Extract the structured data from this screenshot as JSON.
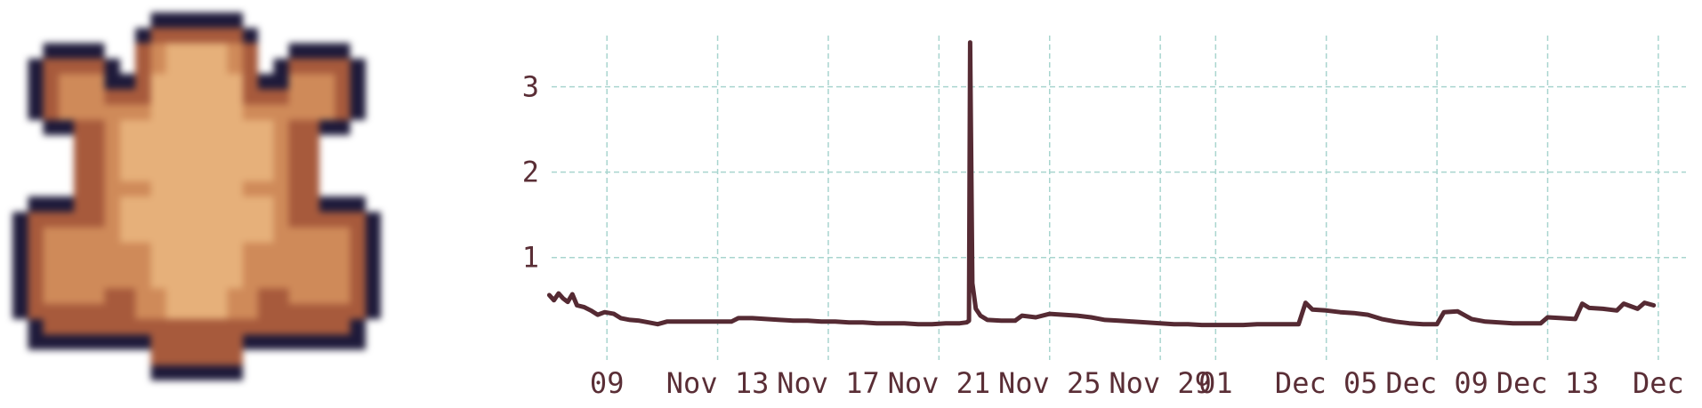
{
  "token_image": {
    "icon": "turtle-sprite-icon",
    "colors": {
      "outline": "#1e1a3a",
      "shell_dark": "#a75a3c",
      "shell_mid": "#cf8a59",
      "shell_light": "#e6b07a"
    }
  },
  "chart_data": {
    "type": "line",
    "title": "",
    "xlabel": "",
    "ylabel": "",
    "x_axis": {
      "type": "date",
      "range": [
        "2023-11-07T00:00",
        "2023-12-18T00:00"
      ],
      "ticks": [
        "2023-11-09",
        "2023-11-13",
        "2023-11-17",
        "2023-11-21",
        "2023-11-25",
        "2023-11-29",
        "2023-12-01",
        "2023-12-05",
        "2023-12-09",
        "2023-12-13",
        "2023-12-17"
      ],
      "tick_labels": [
        "09",
        "Nov 13",
        "Nov 17",
        "Nov 21",
        "Nov 25",
        "Nov 29",
        "01",
        "Dec 05",
        "Dec 09",
        "Dec 13",
        "Dec"
      ]
    },
    "y_axis": {
      "range": [
        -0.2,
        3.6
      ],
      "ticks": [
        1,
        2,
        3
      ],
      "tick_labels": [
        "1",
        "2",
        "3"
      ]
    },
    "grid": true,
    "legend": false,
    "colors": {
      "line": "#552a33",
      "grid": "#a9d5cf",
      "text": "#5a2e36"
    },
    "series": [
      {
        "points": [
          [
            "2023-11-06T22:00",
            0.56
          ],
          [
            "2023-11-07T02:00",
            0.5
          ],
          [
            "2023-11-07T06:00",
            0.58
          ],
          [
            "2023-11-07T10:00",
            0.52
          ],
          [
            "2023-11-07T14:00",
            0.48
          ],
          [
            "2023-11-07T18:00",
            0.57
          ],
          [
            "2023-11-07T22:00",
            0.44
          ],
          [
            "2023-11-08T04:00",
            0.42
          ],
          [
            "2023-11-08T10:00",
            0.38
          ],
          [
            "2023-11-08T16:00",
            0.33
          ],
          [
            "2023-11-08T22:00",
            0.36
          ],
          [
            "2023-11-09T06:00",
            0.34
          ],
          [
            "2023-11-09T12:00",
            0.29
          ],
          [
            "2023-11-09T20:00",
            0.27
          ],
          [
            "2023-11-10T04:00",
            0.26
          ],
          [
            "2023-11-10T12:00",
            0.24
          ],
          [
            "2023-11-10T20:00",
            0.22
          ],
          [
            "2023-11-11T04:00",
            0.25
          ],
          [
            "2023-11-11T12:00",
            0.25
          ],
          [
            "2023-11-12T00:00",
            0.25
          ],
          [
            "2023-11-12T12:00",
            0.25
          ],
          [
            "2023-11-13T00:00",
            0.25
          ],
          [
            "2023-11-13T12:00",
            0.25
          ],
          [
            "2023-11-13T18:00",
            0.29
          ],
          [
            "2023-11-14T06:00",
            0.29
          ],
          [
            "2023-11-14T18:00",
            0.28
          ],
          [
            "2023-11-15T06:00",
            0.27
          ],
          [
            "2023-11-15T18:00",
            0.26
          ],
          [
            "2023-11-16T06:00",
            0.26
          ],
          [
            "2023-11-16T18:00",
            0.25
          ],
          [
            "2023-11-17T06:00",
            0.25
          ],
          [
            "2023-11-17T18:00",
            0.24
          ],
          [
            "2023-11-18T06:00",
            0.24
          ],
          [
            "2023-11-18T18:00",
            0.23
          ],
          [
            "2023-11-19T06:00",
            0.23
          ],
          [
            "2023-11-19T18:00",
            0.23
          ],
          [
            "2023-11-20T06:00",
            0.22
          ],
          [
            "2023-11-20T18:00",
            0.22
          ],
          [
            "2023-11-21T06:00",
            0.23
          ],
          [
            "2023-11-21T18:00",
            0.23
          ],
          [
            "2023-11-22T00:00",
            0.24
          ],
          [
            "2023-11-22T02:00",
            0.26
          ],
          [
            "2023-11-22T03:00",
            3.52
          ],
          [
            "2023-11-22T05:00",
            0.7
          ],
          [
            "2023-11-22T08:00",
            0.4
          ],
          [
            "2023-11-22T12:00",
            0.32
          ],
          [
            "2023-11-22T18:00",
            0.27
          ],
          [
            "2023-11-23T06:00",
            0.26
          ],
          [
            "2023-11-23T18:00",
            0.26
          ],
          [
            "2023-11-24T00:00",
            0.32
          ],
          [
            "2023-11-24T12:00",
            0.3
          ],
          [
            "2023-11-25T00:00",
            0.34
          ],
          [
            "2023-11-25T12:00",
            0.33
          ],
          [
            "2023-11-26T00:00",
            0.32
          ],
          [
            "2023-11-26T12:00",
            0.3
          ],
          [
            "2023-11-27T00:00",
            0.27
          ],
          [
            "2023-11-27T12:00",
            0.26
          ],
          [
            "2023-11-28T00:00",
            0.25
          ],
          [
            "2023-11-28T12:00",
            0.24
          ],
          [
            "2023-11-29T00:00",
            0.23
          ],
          [
            "2023-11-29T12:00",
            0.22
          ],
          [
            "2023-11-30T00:00",
            0.22
          ],
          [
            "2023-11-30T12:00",
            0.21
          ],
          [
            "2023-12-01T00:00",
            0.21
          ],
          [
            "2023-12-01T12:00",
            0.21
          ],
          [
            "2023-12-02T00:00",
            0.21
          ],
          [
            "2023-12-02T12:00",
            0.22
          ],
          [
            "2023-12-03T00:00",
            0.22
          ],
          [
            "2023-12-03T12:00",
            0.22
          ],
          [
            "2023-12-04T00:00",
            0.22
          ],
          [
            "2023-12-04T06:00",
            0.47
          ],
          [
            "2023-12-04T12:00",
            0.39
          ],
          [
            "2023-12-05T00:00",
            0.38
          ],
          [
            "2023-12-05T12:00",
            0.36
          ],
          [
            "2023-12-06T00:00",
            0.35
          ],
          [
            "2023-12-06T12:00",
            0.33
          ],
          [
            "2023-12-07T00:00",
            0.28
          ],
          [
            "2023-12-07T12:00",
            0.25
          ],
          [
            "2023-12-08T00:00",
            0.23
          ],
          [
            "2023-12-08T12:00",
            0.22
          ],
          [
            "2023-12-09T00:00",
            0.22
          ],
          [
            "2023-12-09T06:00",
            0.36
          ],
          [
            "2023-12-09T18:00",
            0.37
          ],
          [
            "2023-12-10T06:00",
            0.28
          ],
          [
            "2023-12-10T18:00",
            0.25
          ],
          [
            "2023-12-11T06:00",
            0.24
          ],
          [
            "2023-12-11T18:00",
            0.23
          ],
          [
            "2023-12-12T06:00",
            0.23
          ],
          [
            "2023-12-12T18:00",
            0.23
          ],
          [
            "2023-12-13T00:00",
            0.3
          ],
          [
            "2023-12-13T12:00",
            0.29
          ],
          [
            "2023-12-14T00:00",
            0.28
          ],
          [
            "2023-12-14T06:00",
            0.46
          ],
          [
            "2023-12-14T12:00",
            0.41
          ],
          [
            "2023-12-15T00:00",
            0.4
          ],
          [
            "2023-12-15T12:00",
            0.38
          ],
          [
            "2023-12-15T18:00",
            0.46
          ],
          [
            "2023-12-16T06:00",
            0.4
          ],
          [
            "2023-12-16T12:00",
            0.47
          ],
          [
            "2023-12-16T20:00",
            0.44
          ]
        ]
      }
    ]
  }
}
